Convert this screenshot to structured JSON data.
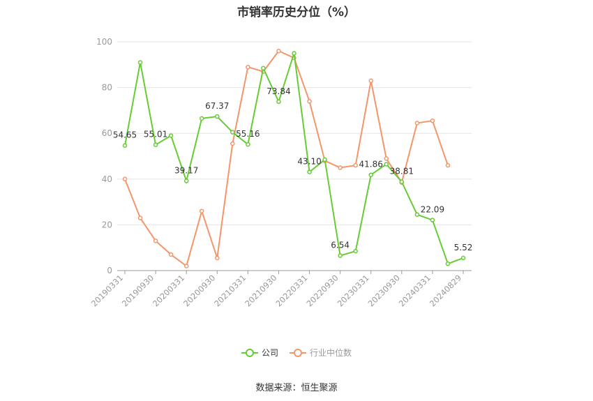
{
  "chart_data": {
    "type": "line",
    "title": "市销率历史分位（%）",
    "ylim": [
      0,
      100
    ],
    "yticks": [
      0,
      20,
      40,
      60,
      80,
      100
    ],
    "x_tick_labels": [
      "20190331",
      "20190930",
      "20200331",
      "20200930",
      "20210331",
      "20210930",
      "20220331",
      "20220930",
      "20230331",
      "20230930",
      "20240331",
      "20240829"
    ],
    "x": [
      "20190331",
      "20190630",
      "20190930",
      "20191231",
      "20200331",
      "20200630",
      "20200930",
      "20201231",
      "20210331",
      "20210630",
      "20210930",
      "20211231",
      "20220331",
      "20220630",
      "20220930",
      "20221231",
      "20230331",
      "20230630",
      "20230930",
      "20231231",
      "20240331",
      "20240630",
      "20240829"
    ],
    "series": [
      {
        "name": "公司",
        "color": "#66cc33",
        "values": [
          54.65,
          91,
          55.01,
          59,
          39.17,
          66.5,
          67.37,
          60.5,
          55.16,
          88.5,
          73.84,
          95,
          43.1,
          48.5,
          6.54,
          8.5,
          41.86,
          46.5,
          38.81,
          24.5,
          22.09,
          3,
          5.52
        ]
      },
      {
        "name": "行业中位数",
        "color": "#f4956a",
        "values": [
          40,
          23,
          13,
          7,
          2,
          26,
          5.5,
          55.5,
          89,
          87,
          96,
          93,
          74,
          48,
          45,
          46,
          83,
          49,
          38.5,
          64.5,
          65.5,
          46,
          null
        ]
      }
    ],
    "data_labels": [
      {
        "index": 0,
        "text": "54.65"
      },
      {
        "index": 2,
        "text": "55.01"
      },
      {
        "index": 4,
        "text": "39.17"
      },
      {
        "index": 6,
        "text": "67.37"
      },
      {
        "index": 8,
        "text": "55.16"
      },
      {
        "index": 10,
        "text": "73.84"
      },
      {
        "index": 12,
        "text": "43.10"
      },
      {
        "index": 14,
        "text": "6.54"
      },
      {
        "index": 16,
        "text": "41.86"
      },
      {
        "index": 18,
        "text": "38.81"
      },
      {
        "index": 20,
        "text": "22.09"
      },
      {
        "index": 22,
        "text": "5.52"
      }
    ],
    "legend_position": "bottom-center",
    "grid": true
  },
  "source": "数据来源：恒生聚源"
}
